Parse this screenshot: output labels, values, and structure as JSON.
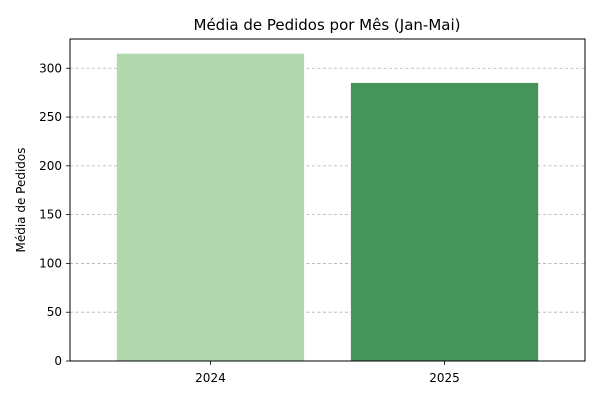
{
  "chart_data": {
    "type": "bar",
    "title": "Média de Pedidos por Mês (Jan-Mai)",
    "xlabel": "",
    "ylabel": "Média de Pedidos",
    "categories": [
      "2024",
      "2025"
    ],
    "values": [
      315,
      285
    ],
    "bar_colors": [
      "#b2d8b0",
      "#45945c"
    ],
    "ylim": [
      0,
      330
    ],
    "yticks": [
      0,
      50,
      100,
      150,
      200,
      250,
      300
    ],
    "grid": "y-dashed",
    "legend": "none"
  }
}
